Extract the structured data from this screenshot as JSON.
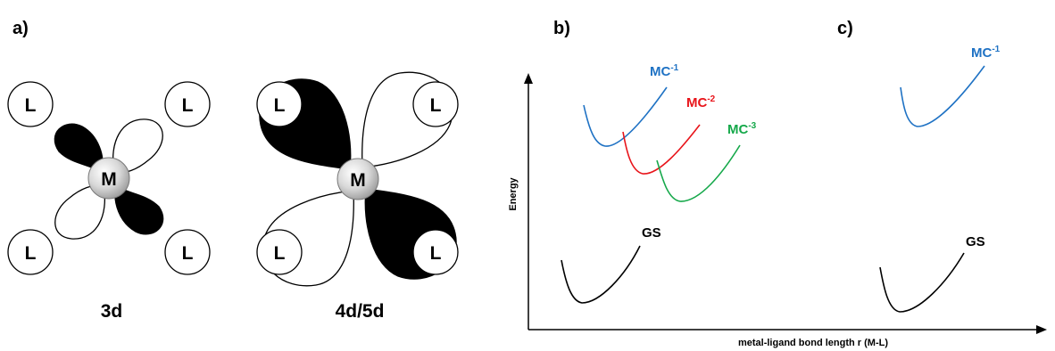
{
  "panels": {
    "a": {
      "label": "a)"
    },
    "b": {
      "label": "b)"
    },
    "c": {
      "label": "c)"
    }
  },
  "orbitals": {
    "metal_label": "M",
    "ligand_label": "L",
    "caption_3d": "3d",
    "caption_4d5d": "4d/5d"
  },
  "energy_diagram": {
    "y_axis_label": "Energy",
    "x_axis_label": "metal-ligand bond length r (M-L)",
    "curves": {
      "mc1": {
        "base": "MC",
        "sup": "-1",
        "color": "#1f72c4"
      },
      "mc2": {
        "base": "MC",
        "sup": "-2",
        "color": "#e8141a"
      },
      "mc3": {
        "base": "MC",
        "sup": "-3",
        "color": "#15a84a"
      },
      "gs": {
        "base": "GS",
        "color": "#000000"
      }
    }
  },
  "panel_c": {
    "curves": {
      "mc1": {
        "base": "MC",
        "sup": "-1",
        "color": "#1f72c4"
      },
      "gs": {
        "base": "GS",
        "color": "#000000"
      }
    }
  }
}
